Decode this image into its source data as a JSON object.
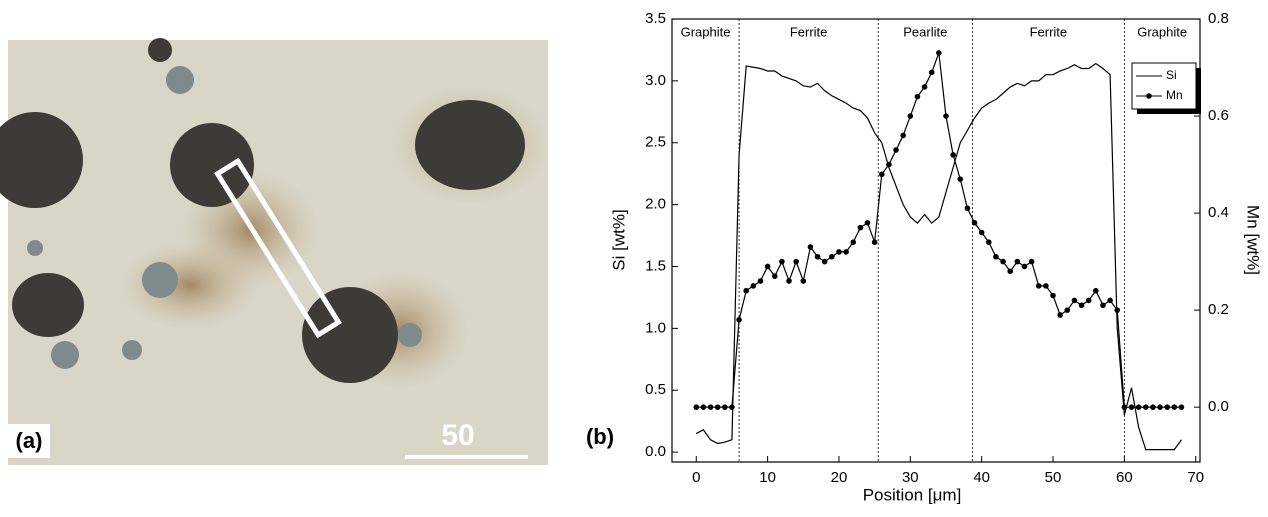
{
  "panel_a": {
    "label": "(a)",
    "scale_bar": "50"
  },
  "chart_data": {
    "type": "line",
    "panel_label": "(b)",
    "x_label": "Position [μm]",
    "y_label": "Si [wt%]",
    "y2_label": "Mn [wt%]",
    "x": [
      0,
      1,
      2,
      3,
      4,
      5,
      6,
      7,
      8,
      9,
      10,
      11,
      12,
      13,
      14,
      15,
      16,
      17,
      18,
      19,
      20,
      21,
      22,
      23,
      24,
      25,
      26,
      27,
      28,
      29,
      30,
      31,
      32,
      33,
      34,
      35,
      36,
      37,
      38,
      39,
      40,
      41,
      42,
      43,
      44,
      45,
      46,
      47,
      48,
      49,
      50,
      51,
      52,
      53,
      54,
      55,
      56,
      57,
      58,
      59,
      60,
      61,
      62,
      63,
      64,
      65,
      66,
      67,
      68
    ],
    "series": [
      {
        "name": "Si",
        "color": "#000000",
        "axis": "y",
        "markers": false,
        "values": [
          0.15,
          0.18,
          0.1,
          0.07,
          0.08,
          0.1,
          2.4,
          3.12,
          3.11,
          3.1,
          3.08,
          3.08,
          3.04,
          3.02,
          3.0,
          2.96,
          2.95,
          2.98,
          2.92,
          2.88,
          2.85,
          2.82,
          2.78,
          2.76,
          2.7,
          2.58,
          2.5,
          2.3,
          2.15,
          2.0,
          1.9,
          1.85,
          1.92,
          1.85,
          1.9,
          2.1,
          2.3,
          2.5,
          2.6,
          2.7,
          2.78,
          2.82,
          2.85,
          2.9,
          2.95,
          2.98,
          2.96,
          3.0,
          3.0,
          3.05,
          3.05,
          3.08,
          3.1,
          3.13,
          3.1,
          3.1,
          3.14,
          3.1,
          3.05,
          1.0,
          0.3,
          0.52,
          0.2,
          0.02,
          0.02,
          0.02,
          0.02,
          0.02,
          0.1
        ]
      },
      {
        "name": "Mn",
        "color": "#000000",
        "axis": "y2",
        "markers": true,
        "values": [
          0.0,
          0.0,
          0.0,
          0.0,
          0.0,
          0.0,
          0.18,
          0.24,
          0.25,
          0.26,
          0.29,
          0.27,
          0.3,
          0.26,
          0.3,
          0.26,
          0.33,
          0.31,
          0.3,
          0.31,
          0.32,
          0.32,
          0.34,
          0.37,
          0.38,
          0.34,
          0.48,
          0.5,
          0.53,
          0.56,
          0.6,
          0.64,
          0.66,
          0.69,
          0.73,
          0.6,
          0.52,
          0.47,
          0.41,
          0.38,
          0.36,
          0.34,
          0.31,
          0.3,
          0.28,
          0.3,
          0.29,
          0.3,
          0.25,
          0.25,
          0.23,
          0.19,
          0.2,
          0.22,
          0.21,
          0.22,
          0.24,
          0.21,
          0.22,
          0.2,
          0.0,
          0.0,
          0.0,
          0.0,
          0.0,
          0.0,
          0.0,
          0.0,
          0.0
        ]
      }
    ],
    "xlim": [
      -3.4,
      70.6
    ],
    "xticks": [
      0,
      10,
      20,
      30,
      40,
      50,
      60,
      70
    ],
    "ylim": [
      -0.08,
      3.5
    ],
    "yticks": [
      {
        "value": 0,
        "label": "0.0"
      },
      0.5,
      {
        "value": 1,
        "label": "1.0"
      },
      1.5,
      {
        "value": 2,
        "label": "2.0"
      },
      2.5,
      {
        "value": 3,
        "label": "3.0"
      },
      3.5
    ],
    "y2lim": [
      -0.113,
      0.8
    ],
    "y2ticks": [
      {
        "value": 0,
        "label": "0.0"
      },
      0.2,
      0.4,
      0.6,
      0.8
    ],
    "phase_boundaries": [
      6,
      25.5,
      38.7,
      60
    ],
    "phases": [
      "Graphite",
      "Ferrite",
      "Pearlite",
      "Ferrite",
      "Graphite"
    ],
    "legend": "top-right"
  }
}
